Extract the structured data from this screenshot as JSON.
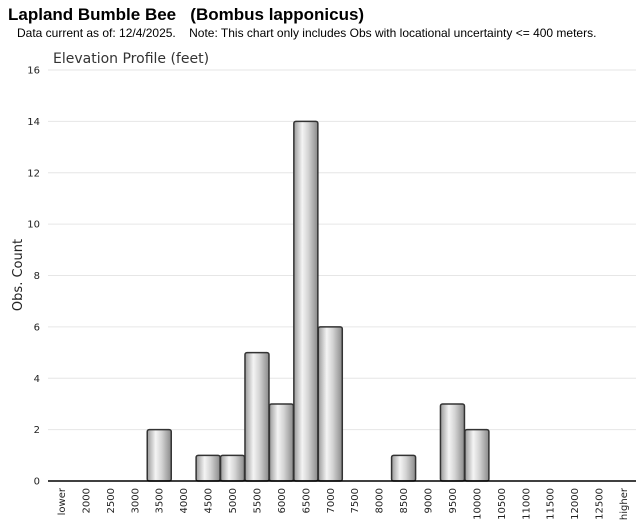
{
  "header": {
    "title": "Lapland Bumble Bee   (Bombus lapponicus)",
    "data_current": "Data current as of: 12/4/2025.",
    "note": "Note: This chart only includes Obs with locational uncertainty <= 400 meters."
  },
  "colors": {
    "bar_edge": "#333333",
    "bar_light": "#f4f4f4",
    "bar_dark": "#8f8f8f",
    "grid": "#e6e6e6",
    "axis": "#000000"
  },
  "chart_data": {
    "type": "bar",
    "title": "Elevation Profile (feet)",
    "xlabel": "",
    "ylabel": "Obs. Count",
    "ylim": [
      0,
      16
    ],
    "yticks": [
      0,
      2,
      4,
      6,
      8,
      10,
      12,
      14,
      16
    ],
    "grid": true,
    "categories": [
      "lower",
      "2000",
      "2500",
      "3000",
      "3500",
      "4000",
      "4500",
      "5000",
      "5500",
      "6000",
      "6500",
      "7000",
      "7500",
      "8000",
      "8500",
      "9000",
      "9500",
      "10000",
      "10500",
      "11000",
      "11500",
      "12000",
      "12500",
      "higher"
    ],
    "values": [
      0,
      0,
      0,
      0,
      2,
      0,
      1,
      1,
      5,
      3,
      14,
      6,
      0,
      0,
      1,
      0,
      3,
      2,
      0,
      0,
      0,
      0,
      0,
      0
    ]
  }
}
